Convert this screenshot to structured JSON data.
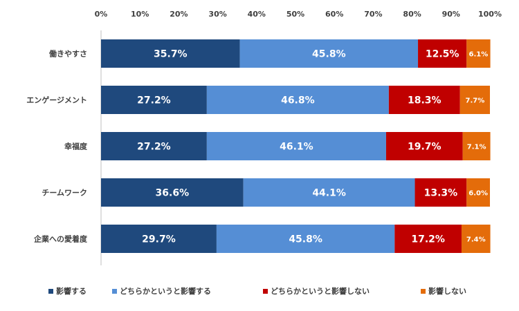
{
  "chart_data": {
    "type": "bar",
    "orientation": "horizontal",
    "stacked": true,
    "percent": true,
    "xlim": [
      0,
      100
    ],
    "x_ticks": [
      "0%",
      "10%",
      "20%",
      "30%",
      "40%",
      "50%",
      "60%",
      "70%",
      "80%",
      "90%",
      "100%"
    ],
    "categories": [
      "働きやすさ",
      "エンゲージメント",
      "幸福度",
      "チームワーク",
      "企業への愛着度"
    ],
    "series": [
      {
        "name": "影響する",
        "color": "#1f497d",
        "values": [
          35.7,
          27.2,
          27.2,
          36.6,
          29.7
        ],
        "labels": [
          "35.7%",
          "27.2%",
          "27.2%",
          "36.6%",
          "29.7%"
        ]
      },
      {
        "name": "どちらかというと影響する",
        "color": "#558ed5",
        "values": [
          45.8,
          46.8,
          46.1,
          44.1,
          45.8
        ],
        "labels": [
          "45.8%",
          "46.8%",
          "46.1%",
          "44.1%",
          "45.8%"
        ]
      },
      {
        "name": "どちらかというと影響しない",
        "color": "#c00000",
        "values": [
          12.5,
          18.3,
          19.7,
          13.3,
          17.2
        ],
        "labels": [
          "12.5%",
          "18.3%",
          "19.7%",
          "13.3%",
          "17.2%"
        ]
      },
      {
        "name": "影響しない",
        "color": "#e46c0a",
        "values": [
          6.1,
          7.7,
          7.1,
          6.0,
          7.4
        ],
        "labels": [
          "6.1%",
          "7.7%",
          "7.1%",
          "6.0%",
          "7.4%"
        ]
      }
    ],
    "legend_position": "bottom",
    "grid": false
  }
}
